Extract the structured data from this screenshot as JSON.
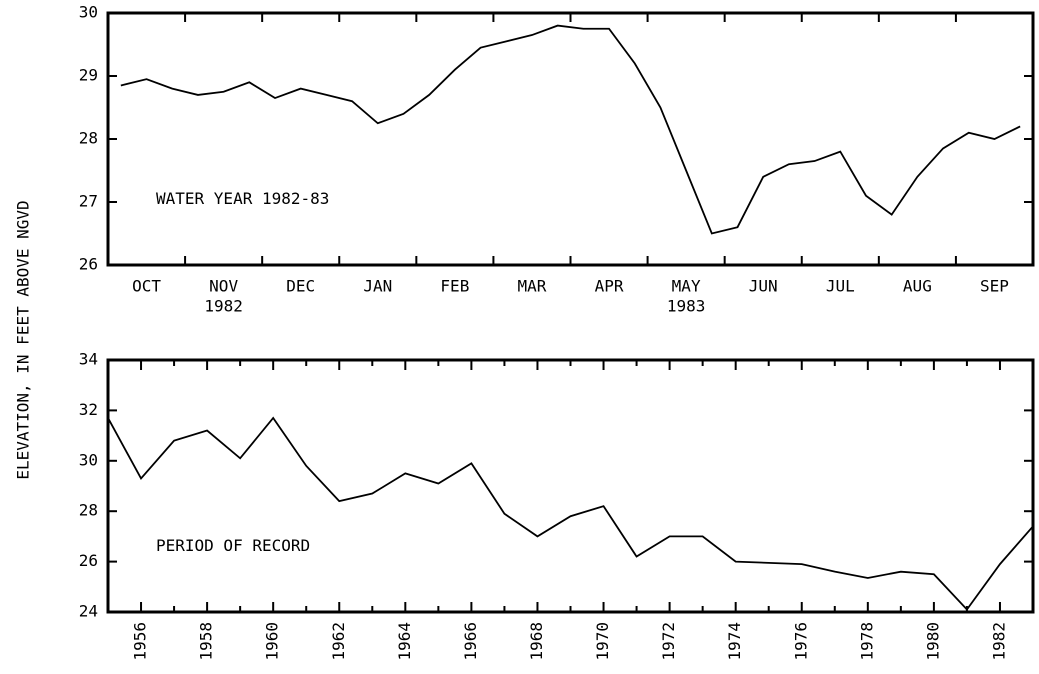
{
  "ylabel": "ELEVATION, IN FEET ABOVE NGVD",
  "chart_data": [
    {
      "type": "line",
      "annotation": "WATER YEAR 1982-83",
      "color": "#000000",
      "categories": [
        null,
        "OCT",
        null,
        null,
        "NOV",
        null,
        null,
        "DEC",
        null,
        null,
        "JAN",
        null,
        null,
        "FEB",
        null,
        null,
        "MAR",
        null,
        null,
        "APR",
        null,
        null,
        "MAY",
        null,
        null,
        "JUN",
        null,
        null,
        "JUL",
        null,
        null,
        "AUG",
        null,
        null,
        "SEP",
        null
      ],
      "category_sublabels": [
        null,
        null,
        null,
        null,
        "1982",
        null,
        null,
        null,
        null,
        null,
        null,
        null,
        null,
        null,
        null,
        null,
        null,
        null,
        null,
        null,
        null,
        null,
        "1983",
        null,
        null,
        null,
        null,
        null,
        null,
        null,
        null,
        null,
        null,
        null,
        null,
        null
      ],
      "values": [
        28.85,
        28.95,
        28.8,
        28.7,
        28.75,
        28.9,
        28.65,
        28.8,
        28.7,
        28.6,
        28.25,
        28.4,
        28.7,
        29.1,
        29.45,
        29.55,
        29.65,
        29.8,
        29.75,
        29.75,
        29.2,
        28.5,
        27.5,
        26.5,
        26.6,
        27.4,
        27.6,
        27.65,
        27.8,
        27.1,
        26.8,
        27.4,
        27.85,
        28.1,
        28.0,
        28.2
      ],
      "ylim": [
        26,
        30
      ],
      "yticks": [
        26,
        27,
        28,
        29,
        30
      ]
    },
    {
      "type": "line",
      "annotation": "PERIOD OF RECORD",
      "color": "#000000",
      "x": [
        1955,
        1956,
        1957,
        1958,
        1959,
        1960,
        1961,
        1962,
        1963,
        1964,
        1965,
        1966,
        1967,
        1968,
        1969,
        1970,
        1971,
        1972,
        1973,
        1974,
        1975,
        1976,
        1977,
        1978,
        1979,
        1980,
        1981,
        1982,
        1983
      ],
      "values": [
        31.7,
        29.3,
        30.8,
        31.2,
        30.1,
        31.7,
        29.8,
        28.4,
        28.7,
        29.5,
        29.1,
        29.9,
        27.9,
        27.0,
        27.8,
        28.2,
        26.2,
        27.0,
        27.0,
        26.0,
        25.95,
        25.9,
        25.6,
        25.35,
        25.6,
        25.5,
        24.1,
        25.9,
        27.4
      ],
      "xlim": [
        1955,
        1983
      ],
      "xticks": [
        1956,
        1958,
        1960,
        1962,
        1964,
        1966,
        1968,
        1970,
        1972,
        1974,
        1976,
        1978,
        1980,
        1982
      ],
      "xminorticks": [
        1955,
        1957,
        1959,
        1961,
        1963,
        1965,
        1967,
        1969,
        1971,
        1973,
        1975,
        1977,
        1979,
        1981,
        1983
      ],
      "ylim": [
        24,
        34
      ],
      "yticks": [
        24,
        26,
        28,
        30,
        32,
        34
      ]
    }
  ]
}
